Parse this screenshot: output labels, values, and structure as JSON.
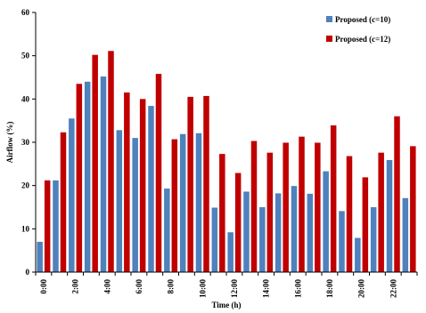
{
  "chart_data": {
    "type": "bar",
    "title": "",
    "xlabel": "Time (h)",
    "ylabel": "Airflow (%)",
    "ylim": [
      0,
      60
    ],
    "yticks": [
      0,
      10,
      20,
      30,
      40,
      50,
      60
    ],
    "grid": false,
    "legend_position": "top-right",
    "categories": [
      "0:00",
      "1:00",
      "2:00",
      "3:00",
      "4:00",
      "5:00",
      "6:00",
      "7:00",
      "8:00",
      "9:00",
      "10:00",
      "11:00",
      "12:00",
      "13:00",
      "14:00",
      "15:00",
      "16:00",
      "17:00",
      "18:00",
      "19:00",
      "20:00",
      "21:00",
      "22:00",
      "23:00"
    ],
    "category_labels": [
      "0:00",
      "",
      "2:00",
      "",
      "4:00",
      "",
      "6:00",
      "",
      "8:00",
      "",
      "10:00",
      "",
      "12:00",
      "",
      "14:00",
      "",
      "16:00",
      "",
      "18:00",
      "",
      "20:00",
      "",
      "22:00",
      ""
    ],
    "series": [
      {
        "name": "Proposed (c=10)",
        "color": "#4f81bd",
        "values": [
          7.0,
          21.2,
          35.5,
          44.0,
          45.2,
          32.8,
          31.0,
          38.4,
          19.3,
          31.9,
          32.1,
          14.9,
          9.2,
          18.6,
          15.0,
          18.2,
          19.9,
          18.1,
          23.3,
          14.1,
          7.9,
          15.0,
          25.9,
          17.1
        ]
      },
      {
        "name": "Proposed (c=12)",
        "color": "#c00000",
        "values": [
          21.2,
          32.3,
          43.5,
          50.2,
          51.1,
          41.5,
          40.0,
          45.8,
          30.7,
          40.5,
          40.7,
          27.3,
          22.9,
          30.3,
          27.6,
          29.9,
          31.3,
          29.9,
          33.9,
          26.8,
          21.9,
          27.6,
          36.0,
          29.1
        ]
      }
    ]
  }
}
